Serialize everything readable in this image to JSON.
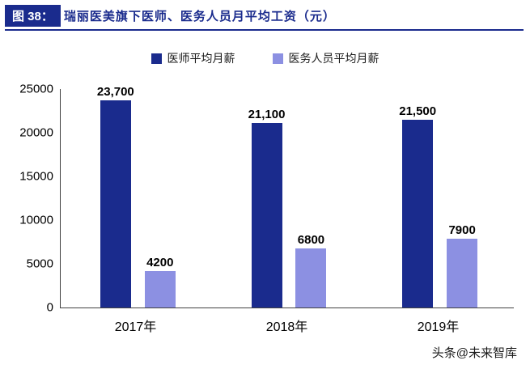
{
  "header": {
    "badge": "图 38：",
    "title": "瑞丽医美旗下医师、医务人员月平均工资（元）"
  },
  "colors": {
    "accent_dark_blue": "#1a2b8d",
    "accent_light_blue": "#8c90e2",
    "axis_line": "#404040"
  },
  "chart_data": {
    "type": "bar",
    "title": "瑞丽医美旗下医师、医务人员月平均工资（元）",
    "categories": [
      "2017年",
      "2018年",
      "2019年"
    ],
    "series": [
      {
        "name": "医师平均月薪",
        "color": "#1a2b8d",
        "values": [
          23700,
          21100,
          21500
        ],
        "labels": [
          "23,700",
          "21,100",
          "21,500"
        ]
      },
      {
        "name": "医务人员平均月薪",
        "color": "#8c90e2",
        "values": [
          4200,
          6800,
          7900
        ],
        "labels": [
          "4200",
          "6800",
          "7900"
        ]
      }
    ],
    "xlabel": "",
    "ylabel": "",
    "ylim": [
      0,
      25000
    ],
    "yticks": [
      0,
      5000,
      10000,
      15000,
      20000,
      25000
    ],
    "grid": false,
    "legend_position": "top"
  },
  "footer": {
    "watermark": "头条@未来智库"
  }
}
